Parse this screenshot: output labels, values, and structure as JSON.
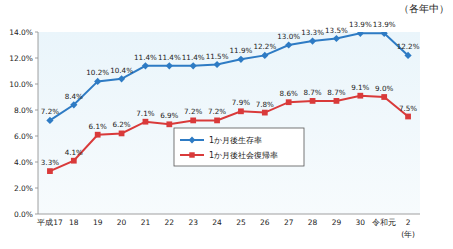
{
  "chart_data": {
    "type": "line",
    "subtitle": "（各年中）",
    "x_label": "(年)",
    "categories": [
      "平成17",
      "18",
      "19",
      "20",
      "21",
      "22",
      "23",
      "24",
      "25",
      "26",
      "27",
      "28",
      "29",
      "30",
      "令和元",
      "2"
    ],
    "series": [
      {
        "name": "1か月後生存率",
        "color": "#2e7bc4",
        "marker": "diamond",
        "values": [
          7.2,
          8.4,
          10.2,
          10.4,
          11.4,
          11.4,
          11.4,
          11.5,
          11.9,
          12.2,
          13.0,
          13.3,
          13.5,
          13.9,
          13.9,
          12.2
        ],
        "value_labels": [
          "7.2%",
          "8.4%",
          "10.2%",
          "10.4%",
          "11.4%",
          "11.4%",
          "11.4%",
          "11.5%",
          "11.9%",
          "12.2%",
          "13.0%",
          "13.3%",
          "13.5%",
          "13.9%",
          "13.9%",
          "12.2%"
        ]
      },
      {
        "name": "1か月後社会復帰率",
        "color": "#d93a3a",
        "marker": "square",
        "values": [
          3.3,
          4.1,
          6.1,
          6.2,
          7.1,
          6.9,
          7.2,
          7.2,
          7.9,
          7.8,
          8.6,
          8.7,
          8.7,
          9.1,
          9.0,
          7.5
        ],
        "value_labels": [
          "3.3%",
          "4.1%",
          "6.1%",
          "6.2%",
          "7.1%",
          "6.9%",
          "7.2%",
          "7.2%",
          "7.9%",
          "7.8%",
          "8.6%",
          "8.7%",
          "8.7%",
          "9.1%",
          "9.0%",
          "7.5%"
        ]
      }
    ],
    "ylim": [
      0,
      14
    ],
    "yticks": [
      {
        "value": 0,
        "label": "0.0%"
      },
      {
        "value": 2,
        "label": "2.0%"
      },
      {
        "value": 4,
        "label": "4.0%"
      },
      {
        "value": 6,
        "label": "6.0%"
      },
      {
        "value": 8,
        "label": "8.0%"
      },
      {
        "value": 10,
        "label": "10.0%"
      },
      {
        "value": 12,
        "label": "12.0%"
      },
      {
        "value": 14,
        "label": "14.0%"
      }
    ],
    "grid": false,
    "legend": "center",
    "data_labels": true
  }
}
